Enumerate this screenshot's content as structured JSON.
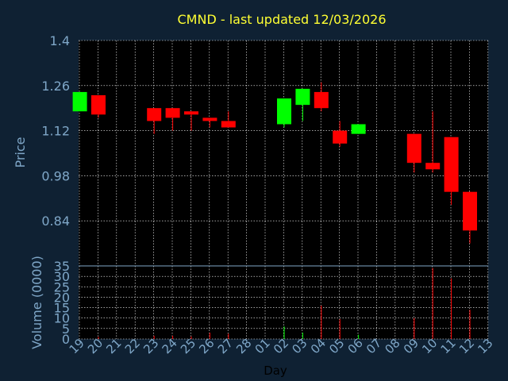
{
  "colors": {
    "background": "#0f2133",
    "plot_background": "#000000",
    "title": "#ffff33",
    "axis_text": "#7fa7c8",
    "xlabel_text": "#000000",
    "grid": "#ffffff",
    "up": "#00ff00",
    "down": "#ff0000"
  },
  "chart_data": {
    "type": "candlestick",
    "title": "CMND - last updated 12/03/2026",
    "xlabel": "Day",
    "price_panel": {
      "ylabel": "Price",
      "ylim": [
        0.7,
        1.4
      ],
      "yticks": [
        "1.4",
        "1.26",
        "1.12",
        "0.98",
        "0.84"
      ],
      "ytick_values": [
        1.4,
        1.26,
        1.12,
        0.98,
        0.84
      ]
    },
    "volume_panel": {
      "ylabel": "Volume (0000)",
      "ylim": [
        0,
        35
      ],
      "yticks": [
        "35",
        "30",
        "25",
        "20",
        "15",
        "10",
        "5",
        "0"
      ],
      "ytick_values": [
        35,
        30,
        25,
        20,
        15,
        10,
        5,
        0
      ]
    },
    "x_ticks": [
      "19",
      "20",
      "21",
      "22",
      "23",
      "24",
      "25",
      "26",
      "27",
      "28",
      "01",
      "02",
      "03",
      "04",
      "05",
      "06",
      "07",
      "08",
      "09",
      "10",
      "11",
      "12",
      "13"
    ],
    "grid": true,
    "candles": [
      {
        "i": 0,
        "open": 1.18,
        "close": 1.24,
        "high": 1.24,
        "low": 1.18,
        "volume": 0
      },
      {
        "i": 1,
        "open": 1.23,
        "close": 1.17,
        "high": 1.23,
        "low": 1.16,
        "volume": 1
      },
      {
        "i": 4,
        "open": 1.19,
        "close": 1.15,
        "high": 1.19,
        "low": 1.11,
        "volume": 1.5
      },
      {
        "i": 5,
        "open": 1.19,
        "close": 1.16,
        "high": 1.19,
        "low": 1.12,
        "volume": 1.5
      },
      {
        "i": 6,
        "open": 1.18,
        "close": 1.17,
        "high": 1.18,
        "low": 1.12,
        "volume": 1.2
      },
      {
        "i": 7,
        "open": 1.16,
        "close": 1.15,
        "high": 1.16,
        "low": 1.13,
        "volume": 3
      },
      {
        "i": 8,
        "open": 1.15,
        "close": 1.13,
        "high": 1.18,
        "low": 1.13,
        "volume": 2.5
      },
      {
        "i": 11,
        "open": 1.14,
        "close": 1.22,
        "high": 1.22,
        "low": 1.13,
        "volume": 6
      },
      {
        "i": 12,
        "open": 1.2,
        "close": 1.25,
        "high": 1.25,
        "low": 1.15,
        "volume": 3
      },
      {
        "i": 13,
        "open": 1.24,
        "close": 1.19,
        "high": 1.27,
        "low": 1.18,
        "volume": 16
      },
      {
        "i": 14,
        "open": 1.12,
        "close": 1.08,
        "high": 1.15,
        "low": 1.07,
        "volume": 9.5
      },
      {
        "i": 15,
        "open": 1.11,
        "close": 1.14,
        "high": 1.14,
        "low": 1.11,
        "volume": 2
      },
      {
        "i": 18,
        "open": 1.11,
        "close": 1.02,
        "high": 1.11,
        "low": 0.99,
        "volume": 10
      },
      {
        "i": 19,
        "open": 1.02,
        "close": 1.0,
        "high": 1.18,
        "low": 0.99,
        "volume": 34
      },
      {
        "i": 20,
        "open": 1.1,
        "close": 0.93,
        "high": 1.1,
        "low": 0.89,
        "volume": 29
      },
      {
        "i": 21,
        "open": 0.93,
        "close": 0.81,
        "high": 0.93,
        "low": 0.77,
        "volume": 14
      }
    ]
  }
}
